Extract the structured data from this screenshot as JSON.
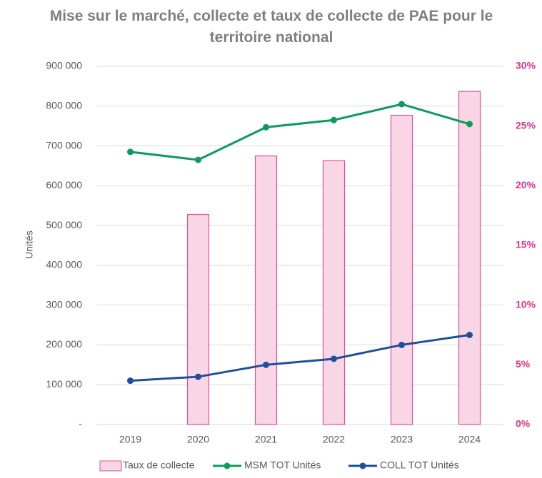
{
  "chart_data": {
    "type": "combo",
    "title": "Mise sur le marché, collecte et taux de collecte de PAE pour le territoire national",
    "ylabel": "Unités",
    "categories": [
      "2019",
      "2020",
      "2021",
      "2022",
      "2023",
      "2024"
    ],
    "series": [
      {
        "name": "Taux de collecte",
        "type": "bar",
        "axis": "y2",
        "color": "#f9d6e6",
        "values": [
          null,
          17.6,
          22.5,
          22.1,
          25.9,
          27.9
        ]
      },
      {
        "name": "MSM TOT Unités",
        "type": "line",
        "color": "#0f9a5c",
        "values": [
          685000,
          665000,
          747000,
          765000,
          805000,
          755000
        ]
      },
      {
        "name": "COLL TOT Unités",
        "type": "line",
        "color": "#1f4e9c",
        "values": [
          110000,
          120000,
          150000,
          165000,
          200000,
          225000
        ]
      }
    ],
    "ylim": [
      0,
      900000
    ],
    "yticks": [
      {
        "value": 0,
        "label": "-"
      },
      {
        "value": 100000,
        "label": "100 000"
      },
      {
        "value": 200000,
        "label": "200 000"
      },
      {
        "value": 300000,
        "label": "300 000"
      },
      {
        "value": 400000,
        "label": "400 000"
      },
      {
        "value": 500000,
        "label": "500 000"
      },
      {
        "value": 600000,
        "label": "600 000"
      },
      {
        "value": 700000,
        "label": "700 000"
      },
      {
        "value": 800000,
        "label": "800 000"
      },
      {
        "value": 900000,
        "label": "900 000"
      }
    ],
    "y2lim": [
      0,
      30
    ],
    "y2ticks": [
      {
        "value": 0,
        "label": "0%"
      },
      {
        "value": 5,
        "label": "5%"
      },
      {
        "value": 10,
        "label": "10%"
      },
      {
        "value": 15,
        "label": "15%"
      },
      {
        "value": 20,
        "label": "20%"
      },
      {
        "value": 25,
        "label": "25%"
      },
      {
        "value": 30,
        "label": "30%"
      }
    ],
    "grid": true,
    "legend": "bottom"
  }
}
